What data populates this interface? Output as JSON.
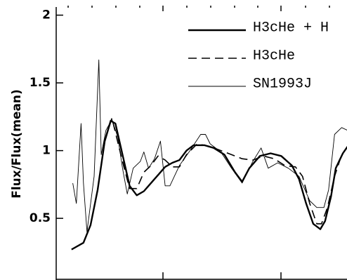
{
  "chart_data": {
    "type": "line",
    "y_label": "Flux/Flux(mean)",
    "xlim": [
      4100,
      6650
    ],
    "ylim": [
      0.05,
      2.06
    ],
    "yticks": [
      0.5,
      1,
      1.5,
      2
    ],
    "series": [
      {
        "name": "H3cHe + H",
        "color": "#000000",
        "line_width": 2.4,
        "dashed": false,
        "x": [
          4230,
          4330,
          4390,
          4450,
          4510,
          4560,
          4600,
          4660,
          4720,
          4780,
          4840,
          4900,
          4960,
          5020,
          5080,
          5140,
          5200,
          5260,
          5350,
          5430,
          5520,
          5610,
          5670,
          5730,
          5820,
          5910,
          6000,
          6090,
          6150,
          6210,
          6270,
          6330,
          6370,
          6420,
          6460,
          6520,
          6560
        ],
        "values": [
          0.27,
          0.32,
          0.45,
          0.71,
          1.07,
          1.22,
          1.2,
          0.97,
          0.74,
          0.67,
          0.7,
          0.76,
          0.82,
          0.88,
          0.91,
          0.93,
          1.0,
          1.04,
          1.04,
          1.02,
          0.97,
          0.84,
          0.77,
          0.87,
          0.96,
          0.98,
          0.96,
          0.89,
          0.79,
          0.61,
          0.46,
          0.42,
          0.48,
          0.66,
          0.87,
          0.98,
          1.03
        ]
      },
      {
        "name": "H3cHe",
        "color": "#000000",
        "line_width": 1.6,
        "dashed": true,
        "x": [
          4230,
          4330,
          4390,
          4450,
          4510,
          4570,
          4660,
          4720,
          4780,
          4840,
          4900,
          4960,
          5020,
          5080,
          5140,
          5200,
          5290,
          5400,
          5520,
          5610,
          5670,
          5760,
          5850,
          5940,
          6030,
          6120,
          6180,
          6240,
          6300,
          6340,
          6390,
          6450,
          6510,
          6560
        ],
        "values": [
          0.27,
          0.32,
          0.45,
          0.71,
          1.07,
          1.24,
          0.92,
          0.72,
          0.72,
          0.84,
          0.89,
          0.96,
          0.93,
          0.88,
          0.88,
          0.97,
          1.05,
          1.03,
          0.99,
          0.96,
          0.94,
          0.93,
          0.96,
          0.94,
          0.89,
          0.88,
          0.81,
          0.61,
          0.46,
          0.46,
          0.58,
          0.81,
          0.97,
          1.03
        ]
      },
      {
        "name": "SN1993J",
        "color": "#000000",
        "line_width": 0.9,
        "dashed": false,
        "x": [
          4240,
          4270,
          4310,
          4330,
          4360,
          4420,
          4460,
          4480,
          4520,
          4570,
          4620,
          4660,
          4700,
          4750,
          4810,
          4840,
          4880,
          4930,
          4980,
          5020,
          5060,
          5140,
          5230,
          5320,
          5360,
          5400,
          5490,
          5580,
          5670,
          5760,
          5830,
          5890,
          5970,
          6060,
          6150,
          6240,
          6300,
          6360,
          6400,
          6450,
          6510,
          6560
        ],
        "values": [
          0.76,
          0.61,
          1.2,
          0.76,
          0.4,
          0.81,
          1.67,
          0.97,
          1.15,
          1.23,
          1.1,
          0.87,
          0.68,
          0.87,
          0.92,
          0.99,
          0.87,
          0.94,
          1.07,
          0.74,
          0.74,
          0.89,
          1.0,
          1.12,
          1.12,
          1.05,
          0.99,
          0.87,
          0.76,
          0.92,
          1.02,
          0.87,
          0.91,
          0.87,
          0.81,
          0.63,
          0.58,
          0.58,
          0.71,
          1.12,
          1.17,
          1.15
        ]
      }
    ]
  }
}
